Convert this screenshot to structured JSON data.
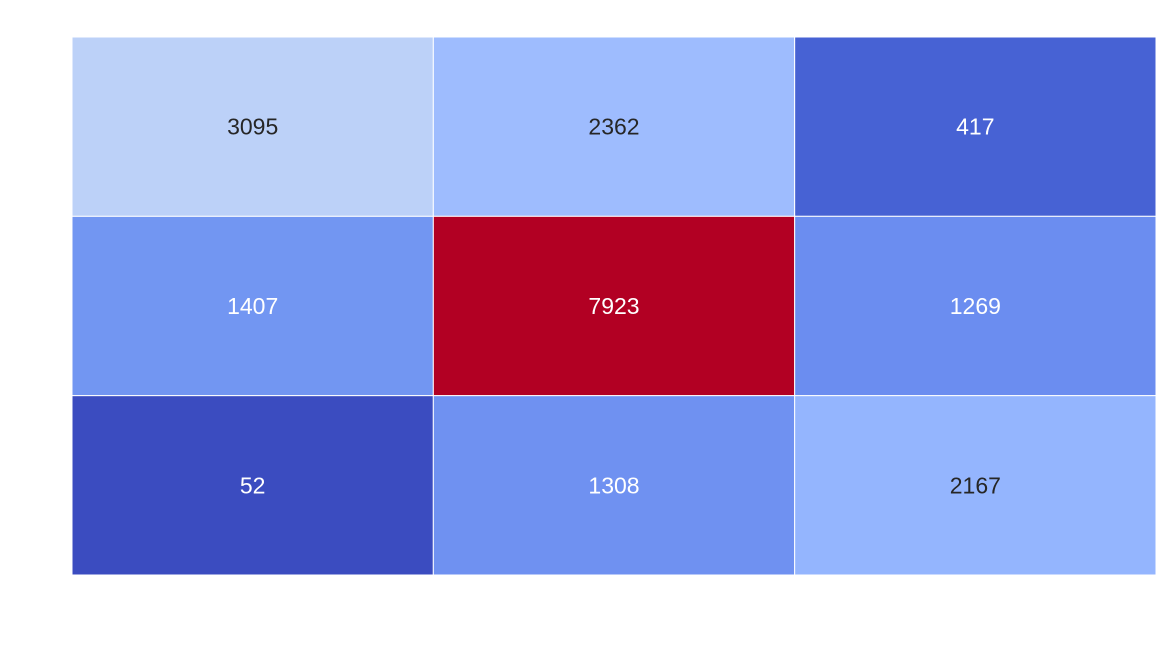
{
  "chart_data": {
    "type": "heatmap",
    "rows": 3,
    "cols": 3,
    "values": [
      [
        3095,
        2362,
        417
      ],
      [
        1407,
        7923,
        1269
      ],
      [
        52,
        1308,
        2167
      ]
    ],
    "cell_colors": [
      [
        "#bcd1f8",
        "#9ebcfe",
        "#4762d4"
      ],
      [
        "#7296f2",
        "#b20023",
        "#6b8df0"
      ],
      [
        "#3b4cc0",
        "#6f91f1",
        "#94b5fe"
      ]
    ],
    "label_colors": [
      [
        "#262626",
        "#262626",
        "#ffffff"
      ],
      [
        "#ffffff",
        "#ffffff",
        "#ffffff"
      ],
      [
        "#ffffff",
        "#ffffff",
        "#262626"
      ]
    ],
    "colormap": "coolwarm",
    "grid_line_color": "#ffffff",
    "xlabel": "",
    "ylabel": "",
    "title": ""
  }
}
